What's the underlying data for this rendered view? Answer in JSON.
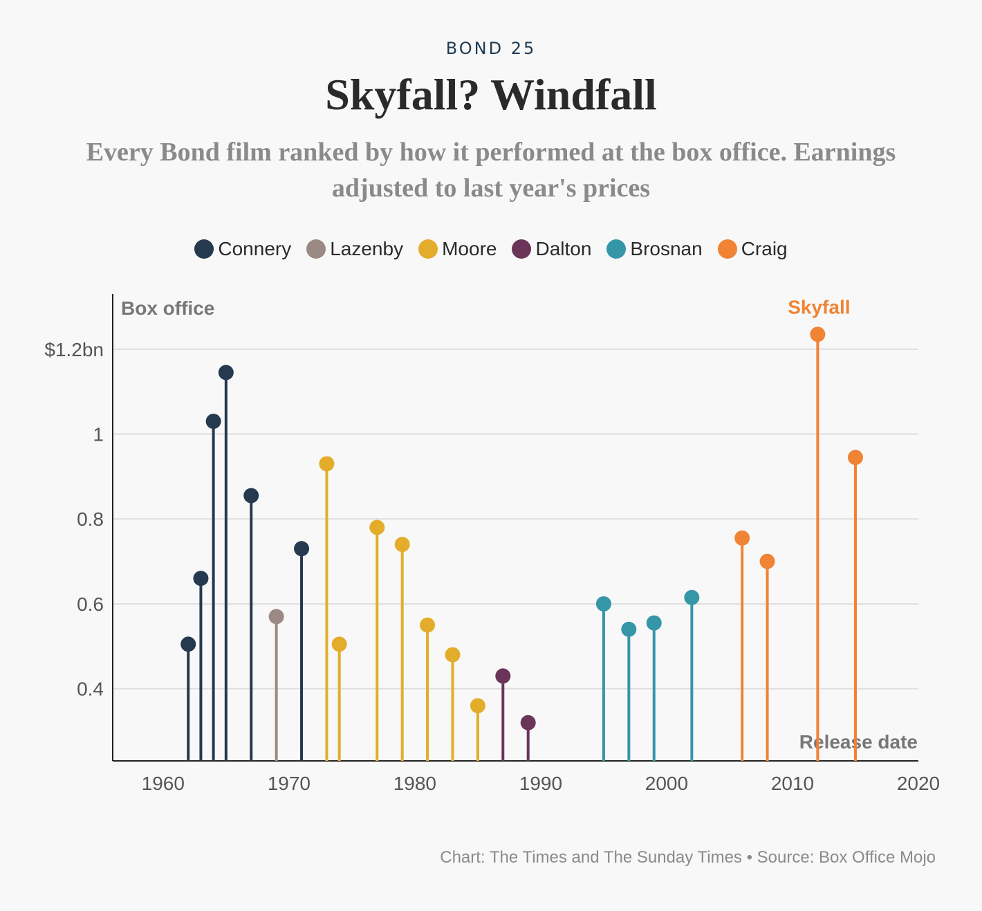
{
  "header": {
    "kicker": "BOND 25",
    "title": "Skyfall? Windfall",
    "subtitle": "Every Bond film ranked by how it performed at the box office. Earnings adjusted to last year's prices"
  },
  "footer": {
    "credit": "Chart: The Times and The Sunday Times • Source: Box Office Mojo"
  },
  "chart_data": {
    "type": "lollipop",
    "ylabel": "Box office",
    "xlabel": "Release date",
    "ylim": [
      0.23,
      1.33
    ],
    "xlim": [
      1956,
      2020
    ],
    "yticks": [
      {
        "value": 0.4,
        "label": "0.4"
      },
      {
        "value": 0.6,
        "label": "0.6"
      },
      {
        "value": 0.8,
        "label": "0.8"
      },
      {
        "value": 1.0,
        "label": "1"
      },
      {
        "value": 1.2,
        "label": "$1.2bn"
      }
    ],
    "xticks": [
      1960,
      1970,
      1980,
      1990,
      2000,
      2010,
      2020
    ],
    "grid": true,
    "legend_position": "top",
    "annotations": [
      {
        "text": "Skyfall",
        "series": "Craig",
        "x": 2012
      }
    ],
    "series": [
      {
        "name": "Connery",
        "color": "#25394f",
        "points": [
          [
            1962,
            0.505
          ],
          [
            1963,
            0.66
          ],
          [
            1964,
            1.03
          ],
          [
            1965,
            1.145
          ],
          [
            1967,
            0.855
          ],
          [
            1971,
            0.73
          ]
        ]
      },
      {
        "name": "Lazenby",
        "color": "#9b8a83",
        "points": [
          [
            1969,
            0.57
          ]
        ]
      },
      {
        "name": "Moore",
        "color": "#e3ad2b",
        "points": [
          [
            1973,
            0.93
          ],
          [
            1974,
            0.505
          ],
          [
            1977,
            0.78
          ],
          [
            1979,
            0.74
          ],
          [
            1981,
            0.55
          ],
          [
            1983,
            0.48
          ],
          [
            1985,
            0.36
          ]
        ]
      },
      {
        "name": "Dalton",
        "color": "#6a3559",
        "points": [
          [
            1987,
            0.43
          ],
          [
            1989,
            0.32
          ]
        ]
      },
      {
        "name": "Brosnan",
        "color": "#3596a8",
        "points": [
          [
            1995,
            0.6
          ],
          [
            1997,
            0.54
          ],
          [
            1999,
            0.555
          ],
          [
            2002,
            0.615
          ]
        ]
      },
      {
        "name": "Craig",
        "color": "#f08334",
        "points": [
          [
            2006,
            0.755
          ],
          [
            2008,
            0.7
          ],
          [
            2012,
            1.235
          ],
          [
            2015,
            0.945
          ]
        ]
      }
    ]
  }
}
